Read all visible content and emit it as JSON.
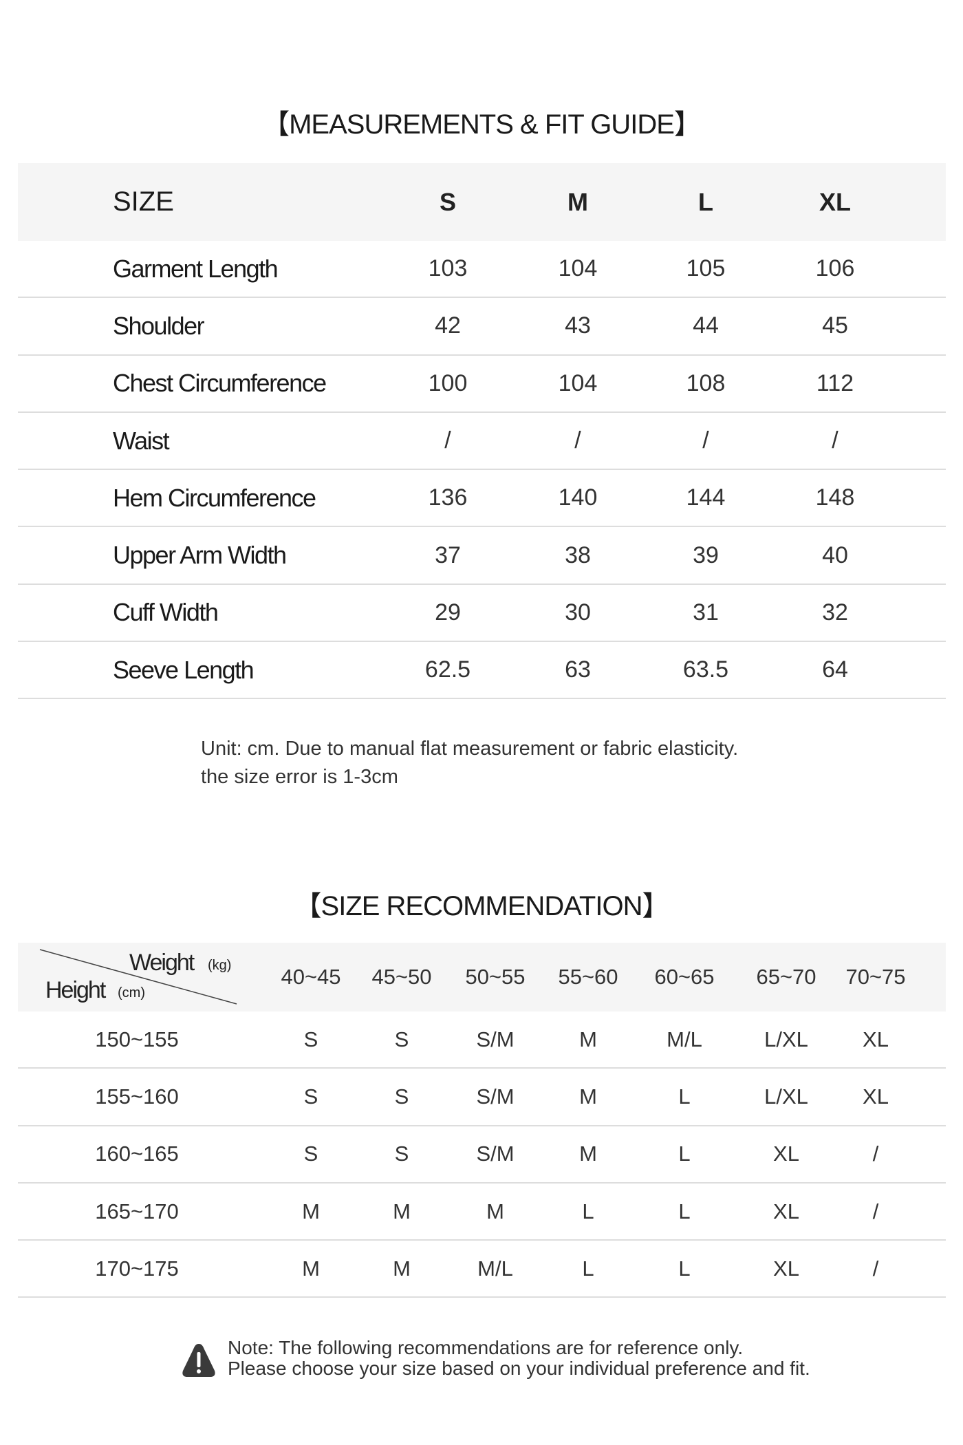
{
  "measurements": {
    "title": "【MEASUREMENTS & FIT GUIDE】",
    "header": {
      "label": "SIZE",
      "sizes": [
        "S",
        "M",
        "L",
        "XL"
      ]
    },
    "rows": [
      {
        "label": "Garment Length",
        "values": [
          "103",
          "104",
          "105",
          "106"
        ]
      },
      {
        "label": "Shoulder",
        "values": [
          "42",
          "43",
          "44",
          "45"
        ]
      },
      {
        "label": "Chest Circumference",
        "values": [
          "100",
          "104",
          "108",
          "112"
        ]
      },
      {
        "label": "Waist",
        "values": [
          "/",
          "/",
          "/",
          "/"
        ]
      },
      {
        "label": "Hem Circumference",
        "values": [
          "136",
          "140",
          "144",
          "148"
        ]
      },
      {
        "label": "Upper Arm Width",
        "values": [
          "37",
          "38",
          "39",
          "40"
        ]
      },
      {
        "label": "Cuff Width",
        "values": [
          "29",
          "30",
          "31",
          "32"
        ]
      },
      {
        "label": "Seeve Length",
        "values": [
          "62.5",
          "63",
          "63.5",
          "64"
        ]
      }
    ],
    "note_line1": "Unit: cm. Due to manual flat measurement or fabric elasticity.",
    "note_line2": "the size error is 1-3cm"
  },
  "recommendation": {
    "title": "【SIZE RECOMMENDATION】",
    "weight_label": "Weight",
    "weight_unit": "(kg)",
    "height_label": "Height",
    "height_unit": "(cm)",
    "weights": [
      "40~45",
      "45~50",
      "50~55",
      "55~60",
      "60~65",
      "65~70",
      "70~75"
    ],
    "rows": [
      {
        "height": "150~155",
        "values": [
          "S",
          "S",
          "S/M",
          "M",
          "M/L",
          "L/XL",
          "XL"
        ]
      },
      {
        "height": "155~160",
        "values": [
          "S",
          "S",
          "S/M",
          "M",
          "L",
          "L/XL",
          "XL"
        ]
      },
      {
        "height": "160~165",
        "values": [
          "S",
          "S",
          "S/M",
          "M",
          "L",
          "XL",
          "/"
        ]
      },
      {
        "height": "165~170",
        "values": [
          "M",
          "M",
          "M",
          "L",
          "L",
          "XL",
          "/"
        ]
      },
      {
        "height": "170~175",
        "values": [
          "M",
          "M",
          "M/L",
          "L",
          "L",
          "XL",
          "/"
        ]
      }
    ],
    "note_line1": "Note: The following recommendations are for reference only.",
    "note_line2": "Please choose your size based on your individual preference and fit.",
    "note_icon": "warning-icon"
  }
}
